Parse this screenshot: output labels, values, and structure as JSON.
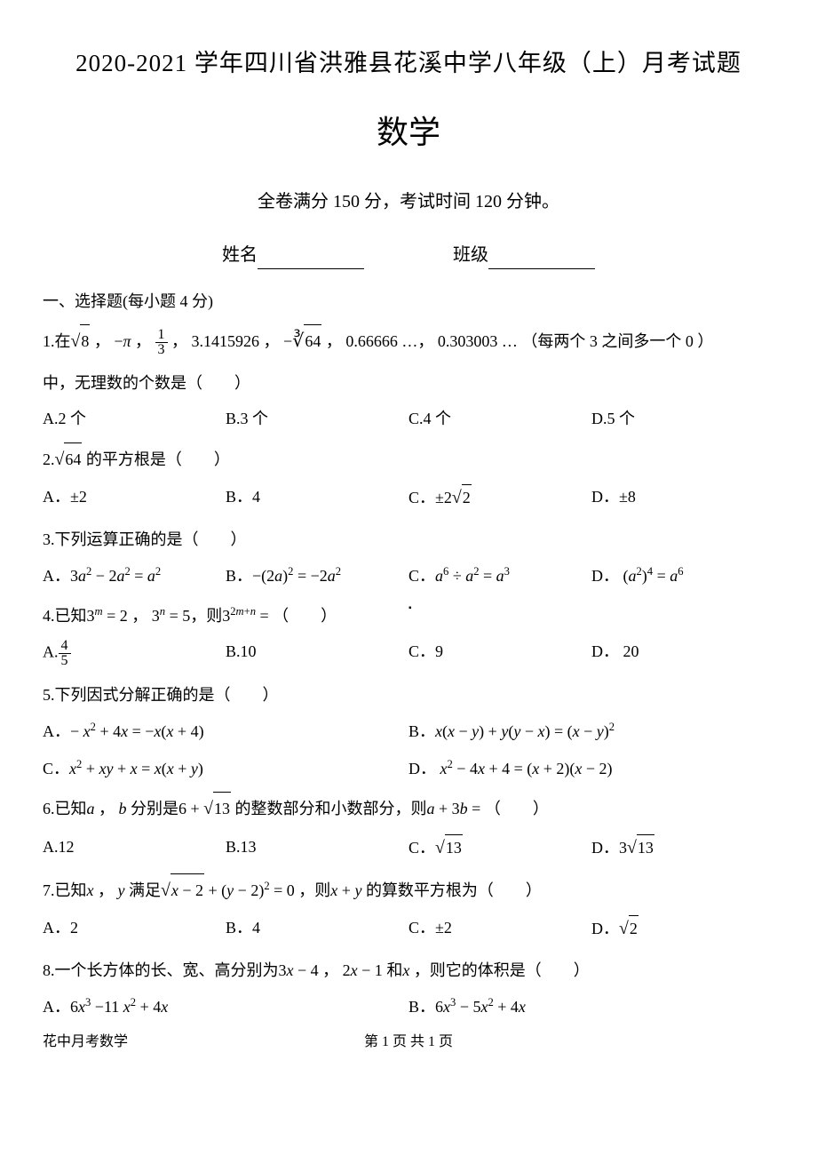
{
  "title": "2020-2021 学年四川省洪雅县花溪中学八年级（上）月考试题",
  "subject": "数学",
  "meta": "全卷满分 150 分，考试时间 120 分钟。",
  "fields": {
    "name_label": "姓名",
    "class_label": "班级"
  },
  "section1_header": "一、选择题(每小题 4 分)",
  "q1": {
    "prefix": "1.在",
    "list_text": " ， −π ， ",
    "mid1": " ， 3.1415926 ， ",
    "mid2": " ， 0.66666 …， 0.303003 … （每两个 3 之间多一个 0 ）",
    "suffix": "中，无理数的个数是（　　）",
    "A": "A.2 个",
    "B": "B.3 个",
    "C": "C.4 个",
    "D": "D.5 个"
  },
  "q2": {
    "text": "2.",
    "suffix": " 的平方根是（　　）",
    "A": "A．±2",
    "B": "B．4",
    "C": "C．±2",
    "D": "D．±8"
  },
  "q3": {
    "text": "3.下列运算正确的是（　　）"
  },
  "q4": {
    "text_pre": "4.已知",
    "text_mid": "， ",
    "text_post": "，则",
    "text_end": " = （　　）",
    "B": "B.10",
    "C": "C．9",
    "D": "D． 20"
  },
  "q5": {
    "text": "5.下列因式分解正确的是（　　）"
  },
  "q6": {
    "pre": "6.已知",
    "mid1": "， ",
    "mid2": "分别是",
    "mid3": " 的整数部分和小数部分，则",
    "end": " = （　　）",
    "A": "A.12",
    "B": "B.13"
  },
  "q7": {
    "pre": "7.已知",
    "mid1": "， ",
    "mid2": "满足",
    "mid3": "，则",
    "end": "的算数平方根为（　　）",
    "A": "A．2",
    "B": "B．4",
    "C": "C．±2"
  },
  "q8": {
    "pre": "8.一个长方体的长、宽、高分别为",
    "mid1": "， ",
    "mid2": "和",
    "end": "，则它的体积是（　　）"
  },
  "footer": {
    "left": "花中月考数学",
    "center": "第 1 页 共 1 页"
  }
}
